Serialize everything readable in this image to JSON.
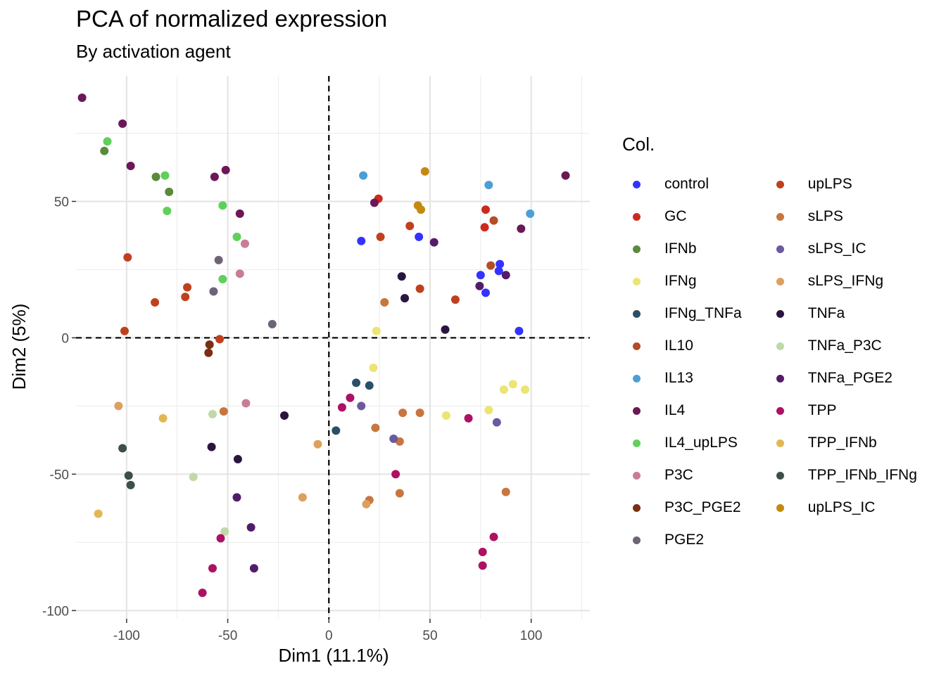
{
  "chart_data": {
    "type": "scatter",
    "title": "PCA of normalized expression",
    "subtitle": "By activation agent",
    "xlabel": "Dim1 (11.1%)",
    "ylabel": "Dim2 (5%)",
    "xlim": [
      -125,
      129
    ],
    "ylim": [
      -103,
      96
    ],
    "xticks": [
      -100,
      -50,
      0,
      50,
      100
    ],
    "yticks": [
      -100,
      -50,
      0,
      50
    ],
    "xtick_labels": [
      "-100",
      "-50",
      "0",
      "50",
      "100"
    ],
    "ytick_labels": [
      "-100",
      "-50",
      "0",
      "50"
    ],
    "grid": true,
    "reference_lines": {
      "x": 0,
      "y": 0,
      "style": "dashed"
    },
    "legend": {
      "title": "Col.",
      "placement": "right"
    },
    "series": [
      {
        "name": "control",
        "color": "#3333ff",
        "points": [
          [
            16,
            35.5
          ],
          [
            44.5,
            37
          ],
          [
            75,
            23
          ],
          [
            77.5,
            16.5
          ],
          [
            84.5,
            27
          ],
          [
            84,
            24.5
          ],
          [
            94,
            2.5
          ]
        ]
      },
      {
        "name": "GC",
        "color": "#cc2a1e",
        "points": [
          [
            24.5,
            51
          ],
          [
            77.5,
            47
          ],
          [
            77,
            40.5
          ]
        ]
      },
      {
        "name": "IFNb",
        "color": "#5a8a3c",
        "points": [
          [
            -111,
            68.5
          ],
          [
            -85.5,
            59
          ],
          [
            -79,
            53.5
          ]
        ]
      },
      {
        "name": "IFNg",
        "color": "#ece473",
        "points": [
          [
            23.5,
            2.5
          ],
          [
            22,
            -11
          ],
          [
            58,
            -28.5
          ],
          [
            79,
            -26.5
          ],
          [
            86.5,
            -19
          ],
          [
            91,
            -17
          ],
          [
            97,
            -19
          ]
        ]
      },
      {
        "name": "IFNg_TNFa",
        "color": "#2c4f67",
        "points": [
          [
            13.5,
            -16.5
          ],
          [
            20,
            -17.5
          ],
          [
            3.5,
            -34
          ]
        ]
      },
      {
        "name": "IL10",
        "color": "#b44c24",
        "points": [
          [
            80,
            26.5
          ],
          [
            81.5,
            43
          ]
        ]
      },
      {
        "name": "IL13",
        "color": "#4c9fd5",
        "points": [
          [
            17,
            59.5
          ],
          [
            79,
            56
          ],
          [
            99.5,
            45.5
          ]
        ]
      },
      {
        "name": "IL4",
        "color": "#6b1856",
        "points": [
          [
            -122,
            88
          ],
          [
            -102,
            78.5
          ],
          [
            -98,
            63
          ],
          [
            -56.5,
            59
          ],
          [
            -51,
            61.5
          ],
          [
            -44,
            45.5
          ],
          [
            22.5,
            49.5
          ],
          [
            95,
            40
          ],
          [
            117,
            59.5
          ]
        ]
      },
      {
        "name": "IL4_upLPS",
        "color": "#5fd05a",
        "points": [
          [
            -109.5,
            72
          ],
          [
            -81,
            59.5
          ],
          [
            -80,
            46.5
          ],
          [
            -52.5,
            48.5
          ],
          [
            -52.5,
            21.5
          ],
          [
            -45.5,
            37
          ]
        ]
      },
      {
        "name": "P3C",
        "color": "#c87d95",
        "points": [
          [
            -41.5,
            34.5
          ],
          [
            -44,
            23.5
          ],
          [
            -41,
            -24
          ]
        ]
      },
      {
        "name": "P3C_PGE2",
        "color": "#7a2e12",
        "points": [
          [
            -59,
            -2.5
          ],
          [
            -59.5,
            -5.5
          ]
        ]
      },
      {
        "name": "PGE2",
        "color": "#6e6478",
        "points": [
          [
            -54.5,
            28.5
          ],
          [
            -57,
            17
          ],
          [
            -28,
            5
          ]
        ]
      },
      {
        "name": "upLPS",
        "color": "#c0401e",
        "points": [
          [
            -99.5,
            29.5
          ],
          [
            -101,
            2.5
          ],
          [
            -86,
            13
          ],
          [
            -70,
            18.5
          ],
          [
            -71,
            15
          ],
          [
            -54,
            -0.5
          ],
          [
            25.5,
            37
          ],
          [
            40,
            41
          ],
          [
            45,
            18
          ],
          [
            62.5,
            14
          ]
        ]
      },
      {
        "name": "sLPS",
        "color": "#c7763f",
        "points": [
          [
            27.5,
            13
          ],
          [
            -52,
            -27
          ],
          [
            36.5,
            -27.5
          ],
          [
            45,
            -27.5
          ],
          [
            23,
            -33
          ],
          [
            35,
            -38
          ],
          [
            35,
            -57
          ],
          [
            20,
            -59.5
          ],
          [
            87.5,
            -56.5
          ]
        ]
      },
      {
        "name": "sLPS_IC",
        "color": "#6b5a9e",
        "points": [
          [
            16,
            -25
          ],
          [
            32,
            -37
          ],
          [
            83,
            -31
          ]
        ]
      },
      {
        "name": "sLPS_IFNg",
        "color": "#dca05f",
        "points": [
          [
            -104,
            -25
          ],
          [
            -5.5,
            -39
          ],
          [
            -13,
            -58.5
          ],
          [
            18.5,
            -61
          ]
        ]
      },
      {
        "name": "TNFa",
        "color": "#2a1540",
        "points": [
          [
            36,
            22.5
          ],
          [
            37.5,
            14.5
          ],
          [
            57.5,
            3
          ],
          [
            -22,
            -28.5
          ],
          [
            -58,
            -40
          ],
          [
            -45,
            -44.5
          ]
        ]
      },
      {
        "name": "TNFa_P3C",
        "color": "#bfd9a8",
        "points": [
          [
            -57.5,
            -28
          ],
          [
            -67,
            -51
          ],
          [
            -51.5,
            -71
          ]
        ]
      },
      {
        "name": "TNFa_PGE2",
        "color": "#531c68",
        "points": [
          [
            52,
            35
          ],
          [
            74.5,
            19
          ],
          [
            87.5,
            23
          ],
          [
            -45.5,
            -58.5
          ],
          [
            -38.5,
            -69.5
          ],
          [
            -37,
            -84.5
          ]
        ]
      },
      {
        "name": "TPP",
        "color": "#ad1163",
        "points": [
          [
            6.5,
            -25.5
          ],
          [
            10.5,
            -22
          ],
          [
            33,
            -50
          ],
          [
            69,
            -29.5
          ],
          [
            81.5,
            -73
          ],
          [
            76,
            -78.5
          ],
          [
            76,
            -83.5
          ],
          [
            -53.5,
            -73.5
          ],
          [
            -57.5,
            -84.5
          ],
          [
            -62.5,
            -93.5
          ]
        ]
      },
      {
        "name": "TPP_IFNb",
        "color": "#e2b753",
        "points": [
          [
            -82,
            -29.5
          ],
          [
            -114,
            -64.5
          ]
        ]
      },
      {
        "name": "TPP_IFNb_IFNg",
        "color": "#3e5045",
        "points": [
          [
            -102,
            -40.5
          ],
          [
            -99,
            -50.5
          ],
          [
            -98,
            -54
          ]
        ]
      },
      {
        "name": "upLPS_IC",
        "color": "#c48a10",
        "points": [
          [
            47.5,
            61
          ],
          [
            44,
            48.5
          ],
          [
            45.5,
            47
          ]
        ]
      }
    ]
  }
}
